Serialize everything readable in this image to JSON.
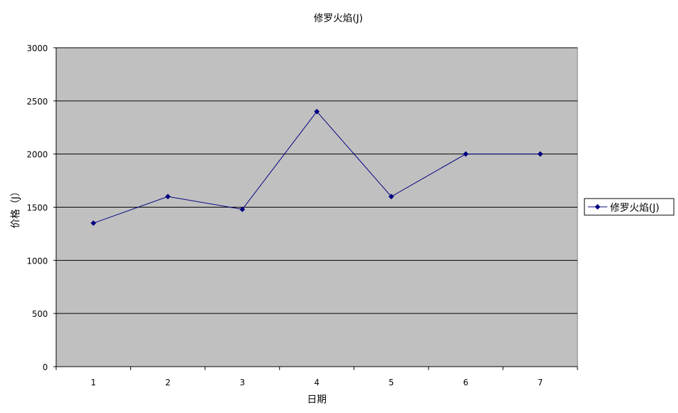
{
  "chart_data": {
    "type": "line",
    "title": "修罗火焰(J)",
    "xlabel": "日期",
    "ylabel": "价格（J）",
    "categories": [
      "1",
      "2",
      "3",
      "4",
      "5",
      "6",
      "7"
    ],
    "series": [
      {
        "name": "修罗火焰(J)",
        "values": [
          1350,
          1600,
          1480,
          2400,
          1600,
          2000,
          2000
        ],
        "color": "#000080"
      }
    ],
    "ylim": [
      0,
      3000
    ],
    "yticks": [
      0,
      500,
      1000,
      1500,
      2000,
      2500,
      3000
    ],
    "grid": true,
    "legend_position": "right",
    "plot_background": "#c0c0c0"
  }
}
